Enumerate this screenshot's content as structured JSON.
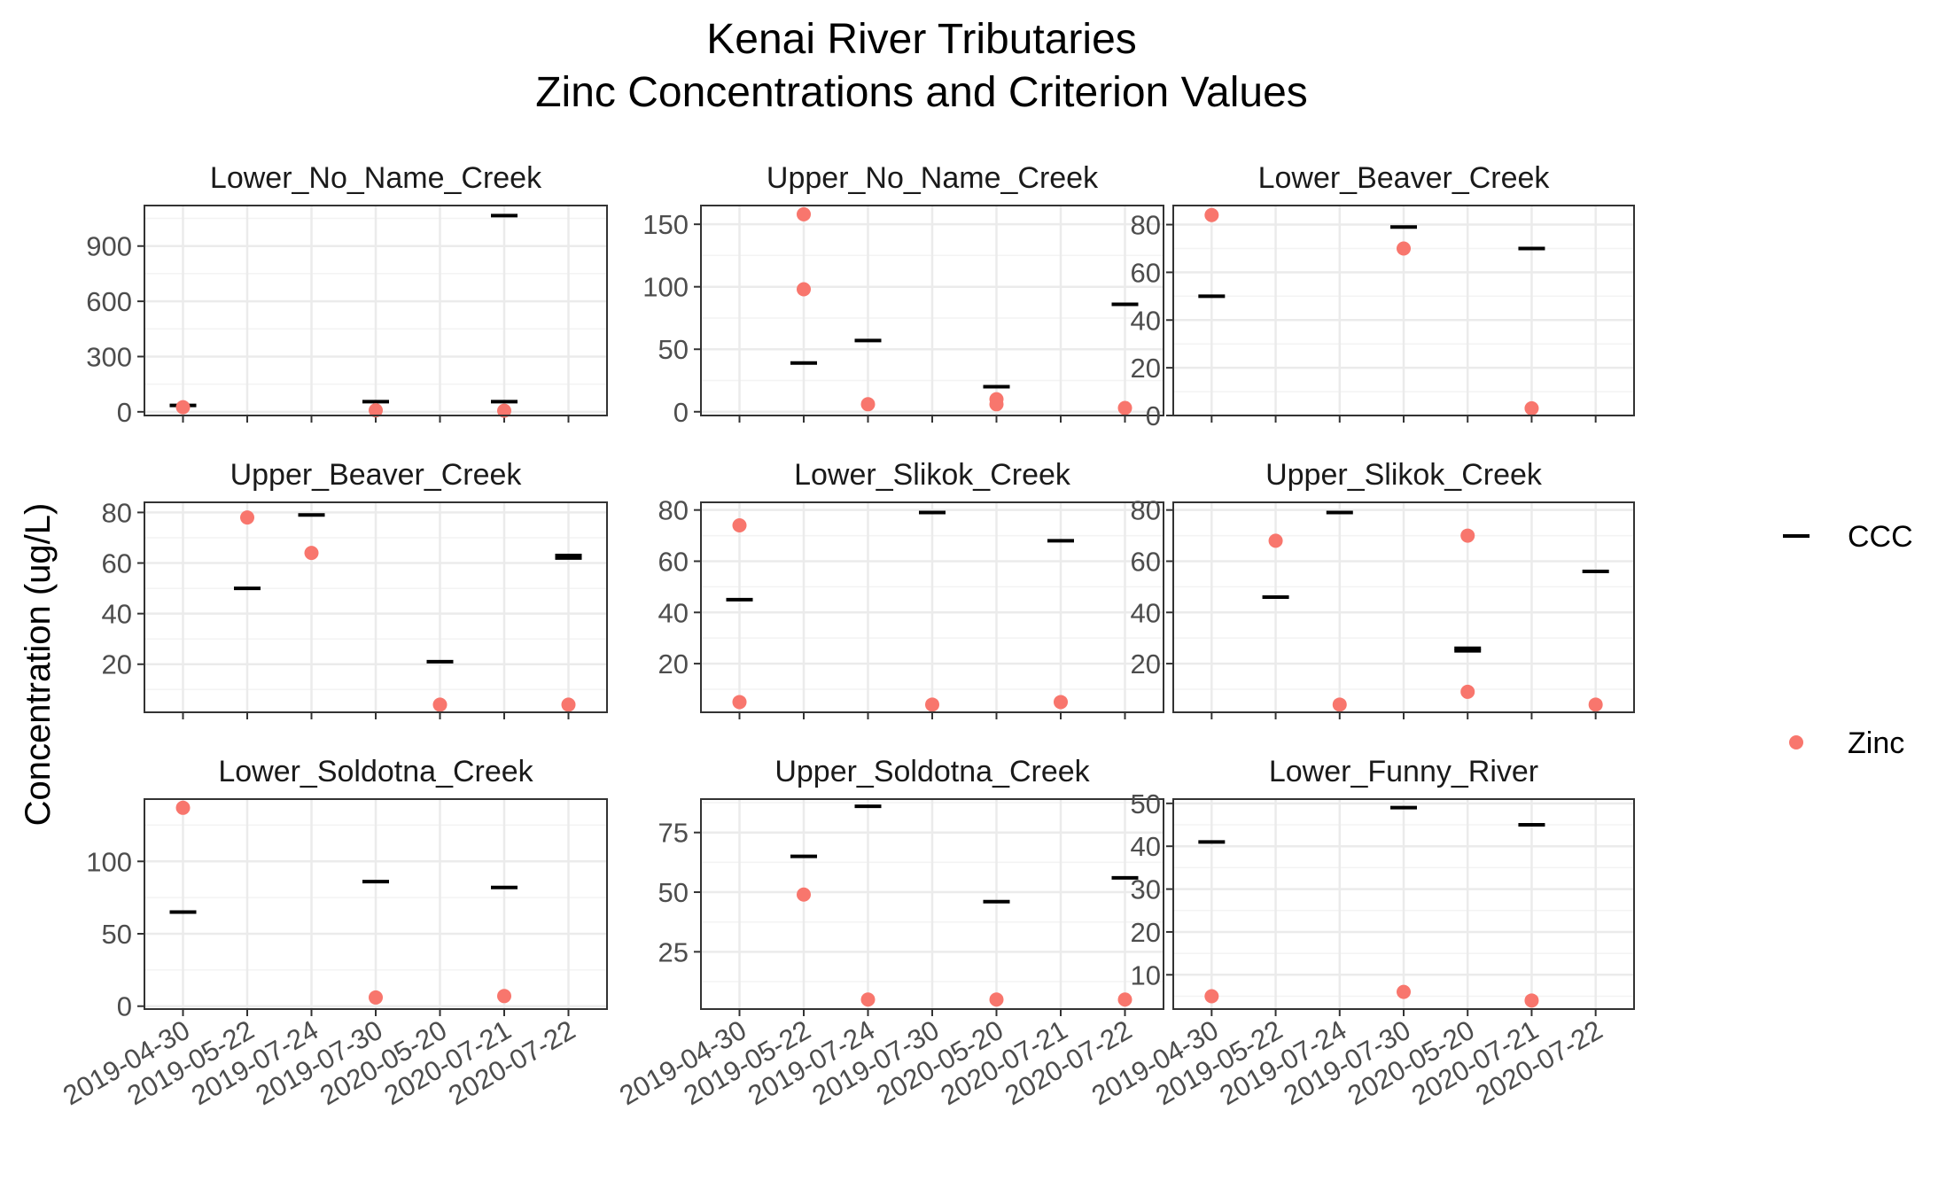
{
  "title_line1": "Kenai River Tributaries",
  "title_line2": "Zinc Concentrations and Criterion Values",
  "y_axis_label": "Concentration (ug/L)",
  "legend": [
    {
      "label": "CCC",
      "shape": "dash",
      "color": "#000000"
    },
    {
      "label": "Zinc",
      "shape": "dot",
      "color": "#F8766D"
    }
  ],
  "colors": {
    "ccc": "#000000",
    "zinc": "#F8766D",
    "panel_border": "#333333",
    "grid_major": "#EBEBEB",
    "grid_minor": "#F3F3F3"
  },
  "chart_data": {
    "type": "scatter",
    "facet_layout": "3x3",
    "x_categories": [
      "2019-04-30",
      "2019-05-22",
      "2019-07-24",
      "2019-07-30",
      "2020-05-20",
      "2020-07-21",
      "2020-07-22"
    ],
    "panels": [
      {
        "name": "Lower_No_Name_Creek",
        "ylim": [
          -20,
          1120
        ],
        "yticks": [
          0,
          300,
          600,
          900
        ],
        "ccc": [
          [
            0,
            35
          ],
          [
            3,
            55
          ],
          [
            5,
            55
          ],
          [
            5,
            1065
          ]
        ],
        "zinc": [
          [
            0,
            25
          ],
          [
            3,
            8
          ],
          [
            5,
            6
          ]
        ]
      },
      {
        "name": "Upper_No_Name_Creek",
        "ylim": [
          -3,
          165
        ],
        "yticks": [
          0,
          50,
          100,
          150
        ],
        "ccc": [
          [
            1,
            39
          ],
          [
            2,
            57
          ],
          [
            4,
            20
          ],
          [
            6,
            86
          ]
        ],
        "zinc": [
          [
            1,
            158
          ],
          [
            1,
            98
          ],
          [
            2,
            6
          ],
          [
            4,
            10
          ],
          [
            4,
            6
          ],
          [
            6,
            3
          ]
        ]
      },
      {
        "name": "Lower_Beaver_Creek",
        "ylim": [
          0,
          88
        ],
        "yticks": [
          0,
          20,
          40,
          60,
          80
        ],
        "ccc": [
          [
            0,
            50
          ],
          [
            3,
            79
          ],
          [
            5,
            70
          ]
        ],
        "zinc": [
          [
            0,
            84
          ],
          [
            3,
            70
          ],
          [
            5,
            3
          ]
        ]
      },
      {
        "name": "Upper_Beaver_Creek",
        "ylim": [
          1,
          84
        ],
        "yticks": [
          20,
          40,
          60,
          80
        ],
        "ccc": [
          [
            1,
            50
          ],
          [
            2,
            79
          ],
          [
            4,
            21
          ],
          [
            6,
            62
          ],
          [
            6,
            63
          ]
        ],
        "zinc": [
          [
            1,
            78
          ],
          [
            2,
            64
          ],
          [
            4,
            4
          ],
          [
            6,
            4
          ]
        ]
      },
      {
        "name": "Lower_Slikok_Creek",
        "ylim": [
          1,
          83
        ],
        "yticks": [
          20,
          40,
          60,
          80
        ],
        "ccc": [
          [
            0,
            45
          ],
          [
            3,
            79
          ],
          [
            5,
            68
          ]
        ],
        "zinc": [
          [
            0,
            74
          ],
          [
            0,
            5
          ],
          [
            3,
            4
          ],
          [
            5,
            5
          ]
        ]
      },
      {
        "name": "Upper_Slikok_Creek",
        "ylim": [
          1,
          83
        ],
        "yticks": [
          20,
          40,
          60,
          80
        ],
        "ccc": [
          [
            1,
            46
          ],
          [
            2,
            79
          ],
          [
            4,
            25
          ],
          [
            4,
            26
          ],
          [
            6,
            56
          ]
        ],
        "zinc": [
          [
            1,
            68
          ],
          [
            2,
            4
          ],
          [
            4,
            70
          ],
          [
            4,
            9
          ],
          [
            6,
            4
          ]
        ]
      },
      {
        "name": "Lower_Soldotna_Creek",
        "ylim": [
          -2,
          143
        ],
        "yticks": [
          0,
          50,
          100
        ],
        "ccc": [
          [
            0,
            65
          ],
          [
            3,
            86
          ],
          [
            5,
            82
          ]
        ],
        "zinc": [
          [
            0,
            137
          ],
          [
            3,
            6
          ],
          [
            5,
            7
          ]
        ]
      },
      {
        "name": "Upper_Soldotna_Creek",
        "ylim": [
          1,
          89
        ],
        "yticks": [
          25,
          50,
          75
        ],
        "ccc": [
          [
            1,
            65
          ],
          [
            2,
            86
          ],
          [
            4,
            46
          ],
          [
            6,
            56
          ]
        ],
        "zinc": [
          [
            1,
            49
          ],
          [
            2,
            5
          ],
          [
            4,
            5
          ],
          [
            6,
            5
          ]
        ]
      },
      {
        "name": "Lower_Funny_River",
        "ylim": [
          2,
          51
        ],
        "yticks": [
          10,
          20,
          30,
          40,
          50
        ],
        "ccc": [
          [
            0,
            41
          ],
          [
            3,
            49
          ],
          [
            5,
            45
          ]
        ],
        "zinc": [
          [
            0,
            5
          ],
          [
            3,
            6
          ],
          [
            5,
            4
          ]
        ]
      }
    ]
  }
}
